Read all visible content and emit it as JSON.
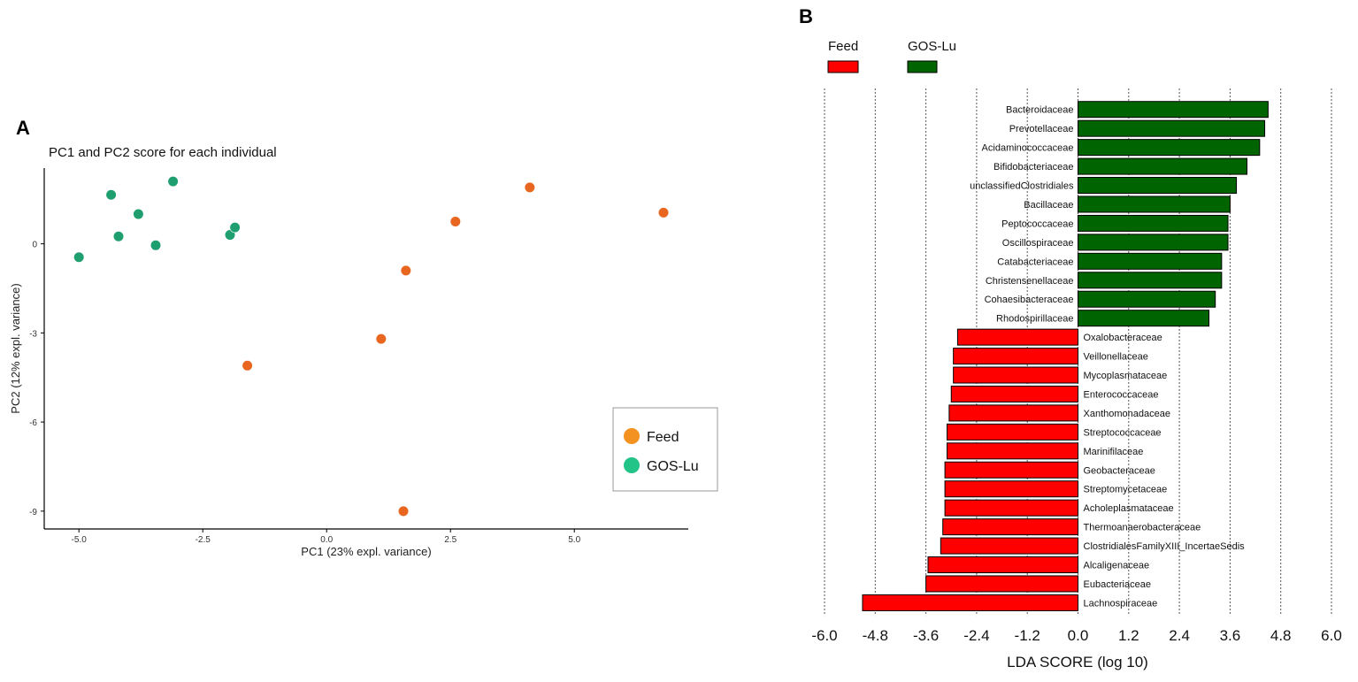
{
  "panelA": {
    "letter": "A",
    "chart_data": {
      "type": "scatter",
      "title": "PC1 and PC2 score for each individual",
      "xlabel": "PC1 (23% expl. variance)",
      "ylabel": "PC2 (12% expl. variance)",
      "xlim": [
        -5.7,
        7.3
      ],
      "ylim": [
        -9.6,
        2.55
      ],
      "xticks": [
        -5.0,
        -2.5,
        0.0,
        2.5,
        5.0
      ],
      "xtick_labels": [
        "-5.0",
        "-2.5",
        "0.0",
        "2.5",
        "5.0"
      ],
      "yticks": [
        0,
        -3,
        -6,
        -9
      ],
      "ytick_labels": [
        "0",
        "-3",
        "-6",
        "-9"
      ],
      "legend_position": "right",
      "series": [
        {
          "name": "Feed",
          "color": "#e8661f",
          "legend_color": "#f39121",
          "points": [
            {
              "x": 4.1,
              "y": 1.9
            },
            {
              "x": 6.8,
              "y": 1.05
            },
            {
              "x": 2.6,
              "y": 0.75
            },
            {
              "x": 1.6,
              "y": -0.9
            },
            {
              "x": 1.1,
              "y": -3.2
            },
            {
              "x": -1.6,
              "y": -4.1
            },
            {
              "x": 1.55,
              "y": -9.0
            }
          ]
        },
        {
          "name": "GOS-Lu",
          "color": "#1f9e70",
          "legend_color": "#23c488",
          "points": [
            {
              "x": -3.1,
              "y": 2.1
            },
            {
              "x": -4.35,
              "y": 1.65
            },
            {
              "x": -3.8,
              "y": 1.0
            },
            {
              "x": -4.2,
              "y": 0.25
            },
            {
              "x": -3.45,
              "y": -0.05
            },
            {
              "x": -5.0,
              "y": -0.45
            },
            {
              "x": -1.95,
              "y": 0.3
            },
            {
              "x": -1.85,
              "y": 0.55
            }
          ]
        }
      ]
    }
  },
  "panelB": {
    "letter": "B",
    "chart_data": {
      "type": "bar",
      "orientation": "horizontal",
      "xlabel": "LDA SCORE (log 10)",
      "xlim": [
        -6.0,
        6.0
      ],
      "xticks": [
        -6.0,
        -4.8,
        -3.6,
        -2.4,
        -1.2,
        0.0,
        1.2,
        2.4,
        3.6,
        4.8,
        6.0
      ],
      "xtick_labels": [
        "-6.0",
        "-4.8",
        "-3.6",
        "-2.4",
        "-1.2",
        "0.0",
        "1.2",
        "2.4",
        "3.6",
        "4.8",
        "6.0"
      ],
      "grid": true,
      "legend_position": "top-left",
      "series": [
        {
          "name": "Feed",
          "color": "#ff0000"
        },
        {
          "name": "GOS-Lu",
          "color": "#006400"
        }
      ],
      "categories": [
        "Bacteroidaceae",
        "Prevotellaceae",
        "Acidaminococcaceae",
        "Bifidobacteriaceae",
        "unclassifiedClostridiales",
        "Bacillaceae",
        "Peptococcaceae",
        "Oscillospiraceae",
        "Catabacteriaceae",
        "Christensenellaceae",
        "Cohaesibacteraceae",
        "Rhodospirillaceae",
        "Oxalobacteraceae",
        "Veillonellaceae",
        "Mycoplasmataceae",
        "Enterococcaceae",
        "Xanthomonadaceae",
        "Streptococcaceae",
        "Marinifilaceae",
        "Geobacteraceae",
        "Streptomycetaceae",
        "Acholeplasmataceae",
        "Thermoanaerobacteraceae",
        "ClostridialesFamilyXIII_IncertaeSedis",
        "Alcaligenaceae",
        "Eubacteriaceae",
        "Lachnospiraceae"
      ],
      "groups": [
        "GOS-Lu",
        "GOS-Lu",
        "GOS-Lu",
        "GOS-Lu",
        "GOS-Lu",
        "GOS-Lu",
        "GOS-Lu",
        "GOS-Lu",
        "GOS-Lu",
        "GOS-Lu",
        "GOS-Lu",
        "GOS-Lu",
        "Feed",
        "Feed",
        "Feed",
        "Feed",
        "Feed",
        "Feed",
        "Feed",
        "Feed",
        "Feed",
        "Feed",
        "Feed",
        "Feed",
        "Feed",
        "Feed",
        "Feed"
      ],
      "values": [
        4.5,
        4.42,
        4.3,
        4.0,
        3.75,
        3.6,
        3.55,
        3.55,
        3.4,
        3.4,
        3.25,
        3.1,
        -2.85,
        -2.95,
        -2.95,
        -3.0,
        -3.05,
        -3.1,
        -3.1,
        -3.15,
        -3.15,
        -3.15,
        -3.2,
        -3.25,
        -3.55,
        -3.6,
        -5.1
      ]
    }
  }
}
